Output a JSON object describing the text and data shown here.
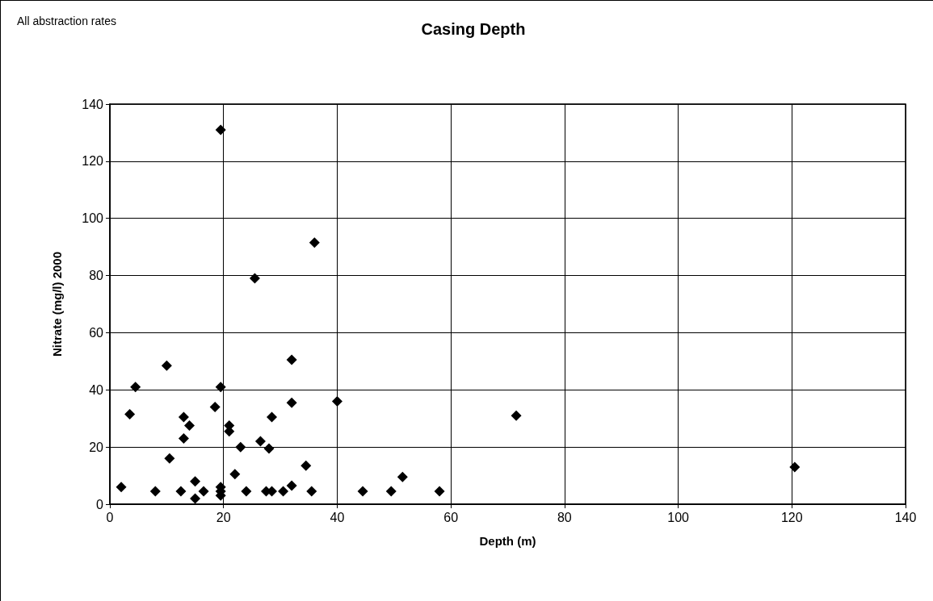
{
  "chart_data": {
    "type": "scatter",
    "title": "Casing Depth",
    "xlabel": "Depth (m)",
    "ylabel": "Nitrate (mg/l) 2000",
    "annotations": [
      "All abstraction rates"
    ],
    "x": [
      2,
      3.5,
      4.5,
      8,
      10,
      10.5,
      12.5,
      13,
      13,
      14,
      15,
      15,
      16.5,
      18.5,
      19.5,
      19.5,
      19.5,
      19.5,
      19.5,
      21,
      21,
      22,
      23,
      24,
      25.5,
      26.5,
      28,
      27.5,
      28.5,
      28.5,
      30.5,
      32,
      32,
      32,
      34.5,
      35.5,
      36,
      40,
      44.5,
      49.5,
      51.5,
      58,
      71.5,
      120.5
    ],
    "values": [
      6,
      31.5,
      41,
      4.5,
      48.5,
      16,
      4.5,
      30.5,
      23,
      27.5,
      8,
      2,
      4.5,
      34,
      41,
      131,
      6,
      4.5,
      3,
      27.5,
      25.5,
      10.5,
      20,
      4.5,
      79,
      22,
      19.5,
      4.5,
      4.5,
      30.5,
      4.5,
      6.5,
      50.5,
      35.5,
      13.5,
      4.5,
      91.5,
      36,
      4.5,
      4.5,
      9.5,
      4.5,
      31,
      13
    ],
    "color": "#000000",
    "marker": "diamond",
    "grid": true,
    "xlim": [
      0,
      140
    ],
    "xticks": [
      0,
      20,
      40,
      60,
      80,
      100,
      120,
      140
    ],
    "ylim": [
      0,
      140
    ],
    "yticks": [
      0,
      20,
      40,
      60,
      80,
      100,
      120,
      140
    ]
  }
}
